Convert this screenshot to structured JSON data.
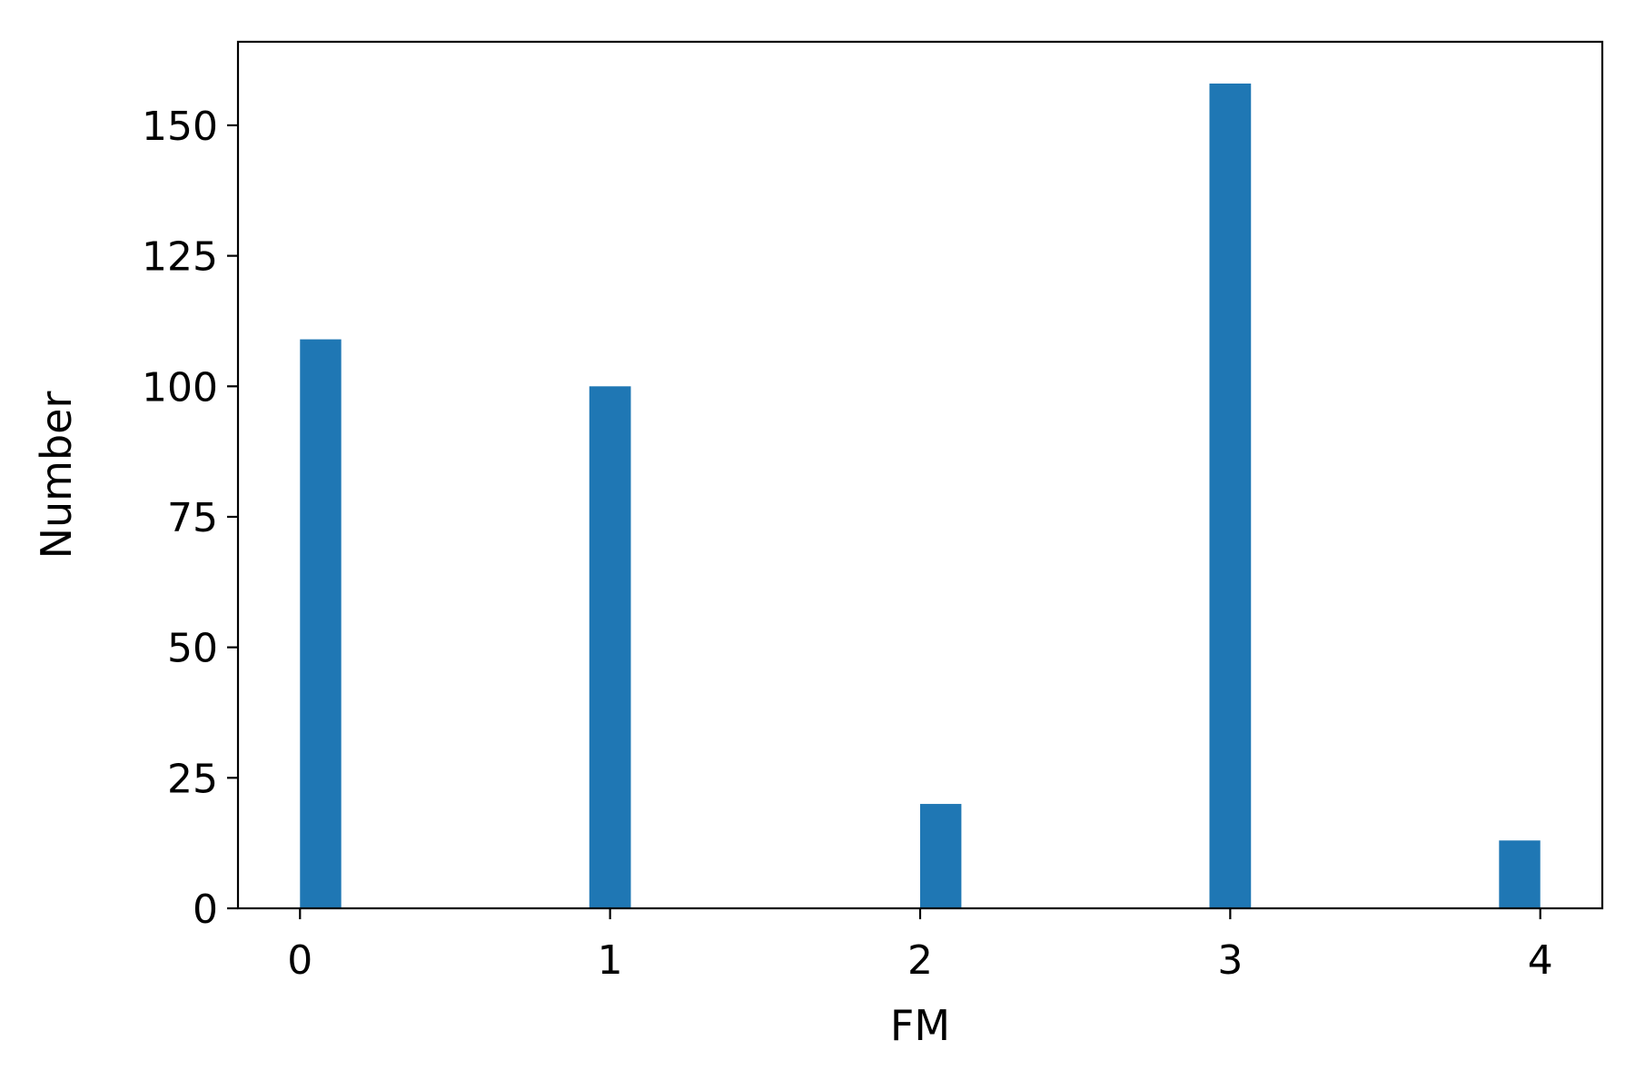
{
  "chart_data": {
    "type": "bar",
    "title": "",
    "xlabel": "FM",
    "ylabel": "Number",
    "bars": [
      {
        "x_start": 0.0,
        "x_end": 0.133,
        "value": 109
      },
      {
        "x_start": 0.933,
        "x_end": 1.067,
        "value": 100
      },
      {
        "x_start": 2.0,
        "x_end": 2.133,
        "value": 20
      },
      {
        "x_start": 2.933,
        "x_end": 3.067,
        "value": 158
      },
      {
        "x_start": 3.867,
        "x_end": 4.0,
        "value": 13
      }
    ],
    "xlim": [
      -0.2,
      4.2
    ],
    "ylim": [
      0,
      166
    ],
    "x_ticks": [
      0,
      1,
      2,
      3,
      4
    ],
    "x_tick_labels": [
      "0",
      "1",
      "2",
      "3",
      "4"
    ],
    "y_ticks": [
      0,
      25,
      50,
      75,
      100,
      125,
      150
    ],
    "y_tick_labels": [
      "0",
      "25",
      "50",
      "75",
      "100",
      "125",
      "150"
    ],
    "bar_color": "#1f77b4",
    "grid": false,
    "legend": "none"
  }
}
